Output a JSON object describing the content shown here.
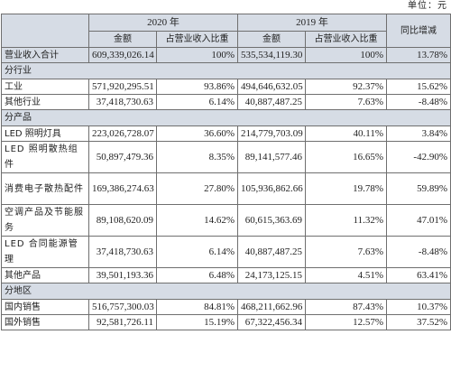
{
  "unit_label": "单位：元",
  "header": {
    "year1": "2020 年",
    "year2": "2019 年",
    "yoy": "同比增减",
    "amount1": "金额",
    "share1": "占营业收入比重",
    "amount2": "金额",
    "share2": "占营业收入比重"
  },
  "total": {
    "label": "营业收入合计",
    "amt2020": "609,339,026.14",
    "pct2020": "100%",
    "amt2019": "535,534,119.30",
    "pct2019": "100%",
    "yoy": "13.78%"
  },
  "industry": {
    "section": "分行业",
    "rows": [
      {
        "label": "工业",
        "amt2020": "571,920,295.51",
        "pct2020": "93.86%",
        "amt2019": "494,646,632.05",
        "pct2019": "92.37%",
        "yoy": "15.62%"
      },
      {
        "label": "其他行业",
        "amt2020": "37,418,730.63",
        "pct2020": "6.14%",
        "amt2019": "40,887,487.25",
        "pct2019": "7.63%",
        "yoy": "-8.48%"
      }
    ]
  },
  "product": {
    "section": "分产品",
    "rows": [
      {
        "label": "LED 照明灯具",
        "amt2020": "223,026,728.07",
        "pct2020": "36.60%",
        "amt2019": "214,779,703.09",
        "pct2019": "40.11%",
        "yoy": "3.84%"
      },
      {
        "label": "LED 照明散热组件",
        "amt2020": "50,897,479.36",
        "pct2020": "8.35%",
        "amt2019": "89,141,577.46",
        "pct2019": "16.65%",
        "yoy": "-42.90%"
      },
      {
        "label": "消费电子散热配件",
        "amt2020": "169,386,274.63",
        "pct2020": "27.80%",
        "amt2019": "105,936,862.66",
        "pct2019": "19.78%",
        "yoy": "59.89%"
      },
      {
        "label": "空调产品及节能服务",
        "amt2020": "89,108,620.09",
        "pct2020": "14.62%",
        "amt2019": "60,615,363.69",
        "pct2019": "11.32%",
        "yoy": "47.01%"
      },
      {
        "label": "LED 合同能源管理",
        "amt2020": "37,418,730.63",
        "pct2020": "6.14%",
        "amt2019": "40,887,487.25",
        "pct2019": "7.63%",
        "yoy": "-8.48%"
      },
      {
        "label": "其他产品",
        "amt2020": "39,501,193.36",
        "pct2020": "6.48%",
        "amt2019": "24,173,125.15",
        "pct2019": "4.51%",
        "yoy": "63.41%"
      }
    ]
  },
  "region": {
    "section": "分地区",
    "rows": [
      {
        "label": "国内销售",
        "amt2020": "516,757,300.03",
        "pct2020": "84.81%",
        "amt2019": "468,211,662.96",
        "pct2019": "87.43%",
        "yoy": "10.37%"
      },
      {
        "label": "国外销售",
        "amt2020": "92,581,726.11",
        "pct2020": "15.19%",
        "amt2019": "67,322,456.34",
        "pct2019": "12.57%",
        "yoy": "37.52%"
      }
    ]
  }
}
